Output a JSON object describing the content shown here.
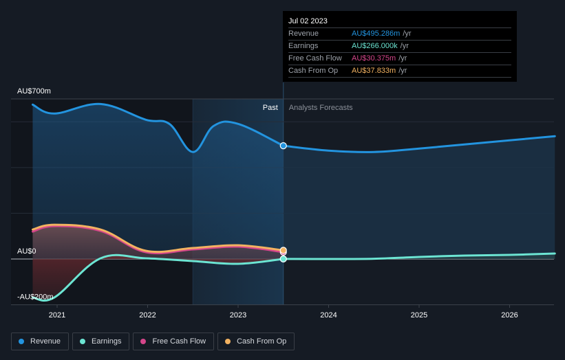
{
  "tooltip": {
    "date": "Jul 02 2023",
    "rows": [
      {
        "label": "Revenue",
        "value": "AU$495.286m",
        "unit": "/yr",
        "color": "#2394df"
      },
      {
        "label": "Earnings",
        "value": "AU$266.000k",
        "unit": "/yr",
        "color": "#6ce5d3"
      },
      {
        "label": "Free Cash Flow",
        "value": "AU$30.375m",
        "unit": "/yr",
        "color": "#d5468b"
      },
      {
        "label": "Cash From Op",
        "value": "AU$37.833m",
        "unit": "/yr",
        "color": "#f2b261"
      }
    ]
  },
  "labels": {
    "past": "Past",
    "forecast": "Analysts Forecasts"
  },
  "legend": [
    {
      "label": "Revenue",
      "color": "#2394df"
    },
    {
      "label": "Earnings",
      "color": "#6ce5d3"
    },
    {
      "label": "Free Cash Flow",
      "color": "#d5468b"
    },
    {
      "label": "Cash From Op",
      "color": "#f2b261"
    }
  ],
  "chart_data": {
    "type": "line",
    "title": "",
    "xlabel": "",
    "ylabel": "",
    "unit": "AU$m",
    "ylim": [
      -200,
      700
    ],
    "xlim": [
      2020.5,
      2026.5
    ],
    "y_ticks": [
      {
        "value": 700,
        "label": "AU$700m"
      },
      {
        "value": 0,
        "label": "AU$0"
      },
      {
        "value": -200,
        "label": "-AU$200m"
      }
    ],
    "gridlines": [
      700,
      600,
      400,
      200,
      0,
      -200
    ],
    "x_ticks": [
      {
        "value": 2021,
        "label": "2021"
      },
      {
        "value": 2022,
        "label": "2022"
      },
      {
        "value": 2023,
        "label": "2023"
      },
      {
        "value": 2024,
        "label": "2024"
      },
      {
        "value": 2025,
        "label": "2025"
      },
      {
        "value": 2026,
        "label": "2026"
      }
    ],
    "past_end": 2023.5,
    "highlight_start": 2022.5,
    "grid": true,
    "legend_position": "bottom-left",
    "series": [
      {
        "name": "Revenue",
        "color": "#2394df",
        "past": [
          [
            2020.73,
            675
          ],
          [
            2020.97,
            636
          ],
          [
            2021.48,
            678
          ],
          [
            2021.98,
            609
          ],
          [
            2022.24,
            591
          ],
          [
            2022.5,
            468
          ],
          [
            2022.73,
            582
          ],
          [
            2023.0,
            591
          ],
          [
            2023.5,
            495.3
          ]
        ],
        "forecast": [
          [
            2023.5,
            495.3
          ],
          [
            2024.0,
            474
          ],
          [
            2024.5,
            468
          ],
          [
            2025.0,
            483
          ],
          [
            2025.5,
            501
          ],
          [
            2026.0,
            519
          ],
          [
            2026.5,
            537
          ]
        ]
      },
      {
        "name": "Earnings",
        "color": "#6ce5d3",
        "past": [
          [
            2020.73,
            -168
          ],
          [
            2020.97,
            -168
          ],
          [
            2021.48,
            3
          ],
          [
            2021.98,
            3
          ],
          [
            2022.5,
            -9
          ],
          [
            2023.0,
            -21
          ],
          [
            2023.5,
            0.266
          ]
        ],
        "forecast": [
          [
            2023.5,
            0.266
          ],
          [
            2024.0,
            0
          ],
          [
            2024.5,
            1
          ],
          [
            2025.0,
            9
          ],
          [
            2025.5,
            15
          ],
          [
            2026.0,
            18
          ],
          [
            2026.5,
            24
          ]
        ]
      },
      {
        "name": "Free Cash Flow",
        "color": "#d5468b",
        "past": [
          [
            2020.73,
            120
          ],
          [
            2020.97,
            144
          ],
          [
            2021.48,
            123
          ],
          [
            2021.98,
            30
          ],
          [
            2022.5,
            42
          ],
          [
            2023.0,
            54
          ],
          [
            2023.5,
            30.375
          ]
        ],
        "forecast": []
      },
      {
        "name": "Cash From Op",
        "color": "#f2b261",
        "past": [
          [
            2020.73,
            129
          ],
          [
            2020.97,
            150
          ],
          [
            2021.48,
            129
          ],
          [
            2021.98,
            36
          ],
          [
            2022.5,
            48
          ],
          [
            2023.0,
            60
          ],
          [
            2023.5,
            37.833
          ]
        ],
        "forecast": []
      }
    ]
  }
}
